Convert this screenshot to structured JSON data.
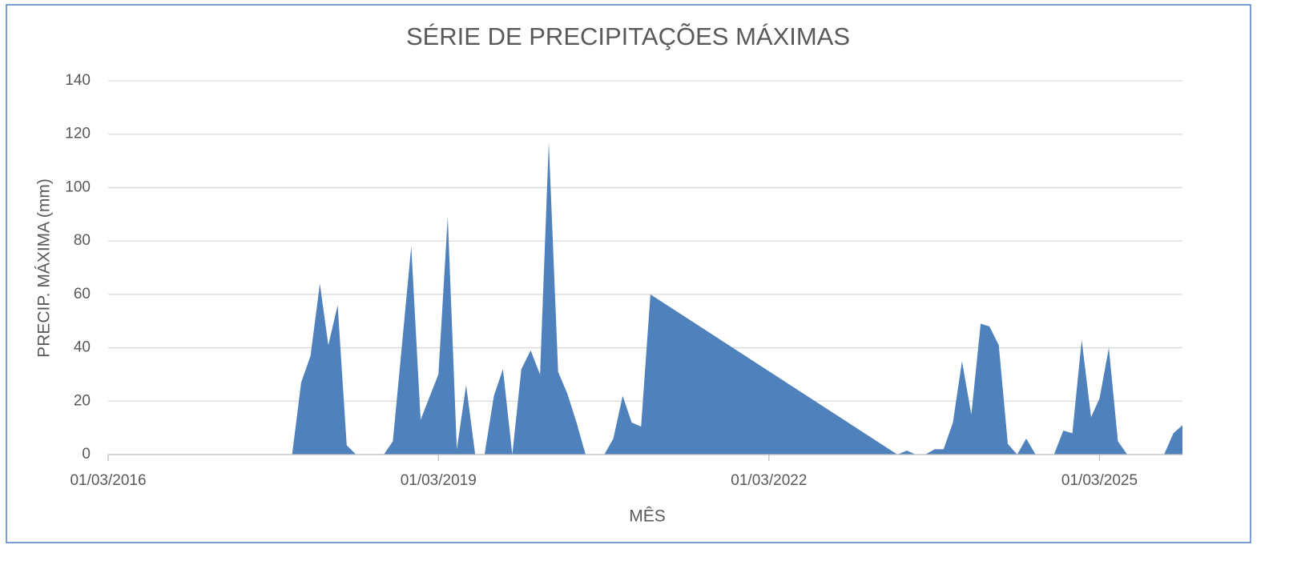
{
  "chart_data": {
    "type": "area",
    "title": "SÉRIE DE PRECIPITAÇÕES MÁXIMAS",
    "x_label": "MÊS",
    "y_label": "PRECIP. MÁXIMA (mm)",
    "color": "#4f81bd",
    "grid": true,
    "x": [
      "01/11/2017",
      "01/12/2017",
      "01/01/2018",
      "01/02/2018",
      "01/03/2018",
      "01/04/2018",
      "01/05/2018",
      "01/06/2018",
      "01/07/2018",
      "01/08/2018",
      "01/09/2018",
      "01/10/2018",
      "01/11/2018",
      "01/12/2018",
      "01/01/2019",
      "01/02/2019",
      "01/03/2019",
      "01/04/2019",
      "01/05/2019",
      "01/06/2019",
      "01/07/2019",
      "01/08/2019",
      "01/09/2019",
      "01/10/2019",
      "01/11/2019",
      "01/12/2019",
      "01/01/2020",
      "01/02/2020",
      "01/03/2020",
      "01/04/2020",
      "01/05/2020",
      "01/06/2020",
      "01/07/2020",
      "01/08/2020",
      "01/09/2020",
      "01/10/2020",
      "01/11/2020",
      "01/12/2020",
      "01/01/2021",
      "01/02/2021",
      "01/05/2023",
      "01/06/2023",
      "01/07/2023",
      "01/08/2023",
      "01/09/2023",
      "01/10/2023",
      "01/11/2023",
      "01/12/2023",
      "01/01/2024",
      "01/02/2024",
      "01/03/2024",
      "01/04/2024",
      "01/05/2024",
      "01/06/2024",
      "01/07/2024",
      "01/08/2024",
      "01/09/2024",
      "01/10/2024",
      "01/11/2024",
      "01/12/2024",
      "01/01/2025",
      "01/02/2025",
      "01/03/2025",
      "01/04/2025",
      "01/05/2025",
      "01/06/2025",
      "01/07/2025",
      "01/08/2025",
      "01/09/2025",
      "01/10/2025",
      "01/11/2025",
      "01/12/2025"
    ],
    "values": [
      0,
      27,
      37,
      64,
      41,
      56,
      3.5,
      0,
      0,
      0,
      0,
      5,
      42,
      78,
      13,
      22,
      30,
      89,
      2,
      26,
      0,
      0,
      22,
      32,
      0,
      32,
      39,
      30,
      117,
      31,
      23,
      12,
      0,
      0,
      0,
      6,
      22,
      12,
      10.5,
      60,
      0,
      1.5,
      0,
      0,
      2,
      2,
      12,
      35,
      15,
      49,
      48,
      41,
      4,
      0,
      6,
      0,
      0,
      0,
      9,
      8,
      43,
      14,
      21,
      40,
      5,
      0,
      0,
      0,
      0,
      0,
      8,
      11
    ],
    "xlim": [
      "01/03/2016",
      "01/12/2025"
    ],
    "xticks": [
      "01/03/2016",
      "01/03/2019",
      "01/03/2022",
      "01/03/2025"
    ],
    "ylim": [
      0,
      140
    ],
    "yticks": [
      0,
      20,
      40,
      60,
      80,
      100,
      120,
      140
    ]
  }
}
